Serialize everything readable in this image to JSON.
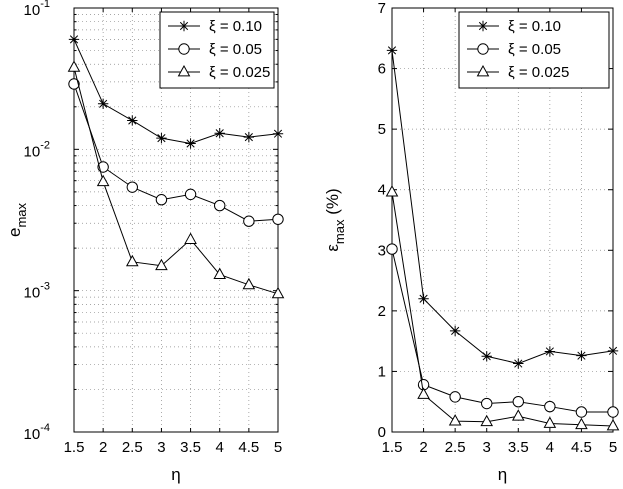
{
  "chart_data": [
    {
      "type": "line",
      "xlabel": "η",
      "ylabel_main": "e",
      "ylabel_sub": "max",
      "yscale": "log",
      "xlim": [
        1.5,
        5
      ],
      "ylim": [
        0.0001,
        0.1
      ],
      "x": [
        1.5,
        2,
        2.5,
        3,
        3.5,
        4,
        4.5,
        5
      ],
      "x_tick_labels": [
        "1.5",
        "2",
        "2.5",
        "3",
        "3.5",
        "4",
        "4.5",
        "5"
      ],
      "y_ticks": [
        {
          "value": 0.1,
          "base": "10",
          "exp": "-1"
        },
        {
          "value": 0.01,
          "base": "10",
          "exp": "-2"
        },
        {
          "value": 0.001,
          "base": "10",
          "exp": "-3"
        },
        {
          "value": 0.0001,
          "base": "10",
          "exp": "-4"
        }
      ],
      "grid": true,
      "legend_position": "top-right",
      "series": [
        {
          "name": "ξ = 0.10",
          "marker": "star",
          "values": [
            0.06,
            0.021,
            0.016,
            0.012,
            0.011,
            0.013,
            0.0122,
            0.0129
          ]
        },
        {
          "name": "ξ = 0.05",
          "marker": "circle",
          "values": [
            0.029,
            0.0075,
            0.0054,
            0.0044,
            0.0048,
            0.004,
            0.0031,
            0.0032
          ]
        },
        {
          "name": "ξ = 0.025",
          "marker": "triangle",
          "values": [
            0.038,
            0.0059,
            0.0016,
            0.0015,
            0.0023,
            0.0013,
            0.0011,
            0.00095
          ]
        }
      ]
    },
    {
      "type": "line",
      "xlabel": "η",
      "ylabel_main": "ε",
      "ylabel_sub": "max",
      "ylabel_suffix": " (%)",
      "yscale": "linear",
      "xlim": [
        1.5,
        5
      ],
      "ylim": [
        0,
        7
      ],
      "x": [
        1.5,
        2,
        2.5,
        3,
        3.5,
        4,
        4.5,
        5
      ],
      "x_tick_labels": [
        "1.5",
        "2",
        "2.5",
        "3",
        "3.5",
        "4",
        "4.5",
        "5"
      ],
      "y_ticks": [
        0,
        1,
        2,
        3,
        4,
        5,
        6,
        7
      ],
      "grid": true,
      "legend_position": "top-right",
      "series": [
        {
          "name": "ξ = 0.10",
          "marker": "star",
          "values": [
            6.3,
            2.2,
            1.67,
            1.25,
            1.13,
            1.33,
            1.26,
            1.34
          ]
        },
        {
          "name": "ξ = 0.05",
          "marker": "circle",
          "values": [
            3.02,
            0.78,
            0.58,
            0.47,
            0.5,
            0.42,
            0.33,
            0.33
          ]
        },
        {
          "name": "ξ = 0.025",
          "marker": "triangle",
          "values": [
            3.96,
            0.62,
            0.18,
            0.17,
            0.26,
            0.14,
            0.12,
            0.1
          ]
        }
      ]
    }
  ]
}
